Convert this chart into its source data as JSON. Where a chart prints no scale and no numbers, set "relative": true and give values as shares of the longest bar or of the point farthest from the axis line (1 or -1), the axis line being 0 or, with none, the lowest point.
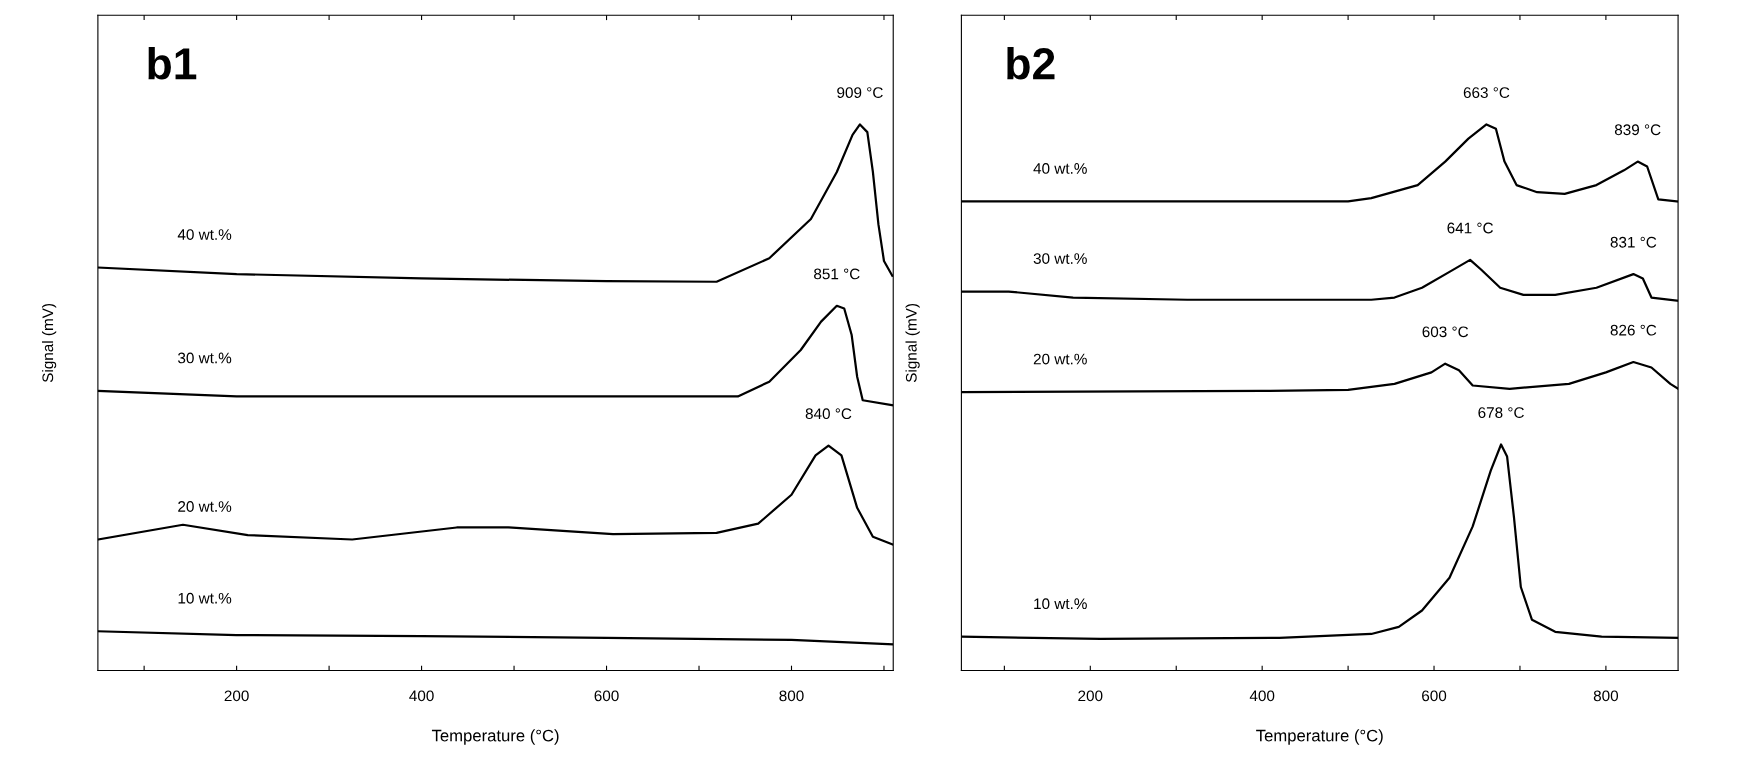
{
  "chart_data": [
    {
      "type": "line",
      "title": "b1",
      "xlabel": "Temperature (°C)",
      "ylabel": "Signal (mV)",
      "relative": true,
      "xlim": [
        50,
        910
      ],
      "xticks": [
        {
          "value": 100,
          "label": null
        },
        200,
        {
          "value": 300,
          "label": null
        },
        400,
        {
          "value": 500,
          "label": null
        },
        600,
        {
          "value": 700,
          "label": null
        },
        800,
        {
          "value": 900,
          "label": null
        }
      ],
      "tick_labels": "x",
      "grid": false,
      "legend": false,
      "marker": "none",
      "line_style": "solid",
      "series": [
        {
          "name": "40 wt.%",
          "color": "#000000",
          "x": [
            50,
            200,
            400,
            600,
            719,
            776,
            821,
            849,
            866,
            874,
            882,
            888,
            894,
            900,
            909
          ],
          "values": [
            0.738,
            0.726,
            0.718,
            0.713,
            0.712,
            0.755,
            0.827,
            0.913,
            0.981,
            1.0,
            0.986,
            0.913,
            0.817,
            0.75,
            0.723
          ]
        },
        {
          "name": "30 wt.%",
          "color": "#000000",
          "x": [
            50,
            200,
            400,
            600,
            742,
            776,
            810,
            832,
            849,
            857,
            865,
            871,
            877,
            909
          ],
          "values": [
            0.512,
            0.502,
            0.502,
            0.502,
            0.502,
            0.529,
            0.587,
            0.639,
            0.668,
            0.663,
            0.615,
            0.538,
            0.495,
            0.486
          ]
        },
        {
          "name": "20 wt.%",
          "color": "#000000",
          "x": [
            50,
            142,
            212,
            325,
            438,
            494,
            607,
            719,
            764,
            800,
            826,
            840,
            854,
            871,
            888,
            909
          ],
          "values": [
            0.24,
            0.267,
            0.248,
            0.24,
            0.262,
            0.262,
            0.25,
            0.252,
            0.269,
            0.322,
            0.394,
            0.412,
            0.394,
            0.298,
            0.245,
            0.231
          ]
        },
        {
          "name": "10 wt.%",
          "color": "#000000",
          "x": [
            50,
            200,
            400,
            600,
            800,
            909
          ],
          "values": [
            0.072,
            0.065,
            0.063,
            0.06,
            0.056,
            0.048
          ]
        }
      ],
      "annotations": [
        "909 °C",
        "851 °C",
        "840 °C"
      ]
    },
    {
      "type": "line",
      "title": "b2",
      "xlabel": "Temperature (°C)",
      "ylabel": "Signal (mV)",
      "relative": true,
      "xlim": [
        50,
        884
      ],
      "xticks": [
        {
          "value": 100,
          "label": null
        },
        200,
        {
          "value": 300,
          "label": null
        },
        400,
        {
          "value": 500,
          "label": null
        },
        600,
        {
          "value": 700,
          "label": null
        },
        800
      ],
      "tick_labels": "x",
      "grid": false,
      "legend": false,
      "marker": "none",
      "line_style": "solid",
      "series": [
        {
          "name": "40 wt.%",
          "color": "#000000",
          "x": [
            50,
            300,
            500,
            527,
            581,
            613,
            640,
            661,
            672,
            682,
            696,
            720,
            752,
            789,
            821,
            837,
            848,
            861,
            884
          ],
          "values": [
            0.859,
            0.859,
            0.859,
            0.865,
            0.889,
            0.932,
            0.974,
            1.0,
            0.992,
            0.932,
            0.889,
            0.876,
            0.873,
            0.889,
            0.916,
            0.932,
            0.923,
            0.863,
            0.859
          ]
        },
        {
          "name": "30 wt.%",
          "color": "#000000",
          "x": [
            50,
            105,
            180,
            313,
            527,
            554,
            586,
            618,
            642,
            655,
            677,
            704,
            741,
            789,
            832,
            843,
            853,
            884
          ],
          "values": [
            0.694,
            0.694,
            0.683,
            0.679,
            0.679,
            0.683,
            0.701,
            0.73,
            0.752,
            0.734,
            0.701,
            0.688,
            0.688,
            0.701,
            0.726,
            0.718,
            0.683,
            0.677
          ]
        },
        {
          "name": "20 wt.%",
          "color": "#000000",
          "x": [
            50,
            400,
            500,
            554,
            597,
            613,
            629,
            645,
            688,
            757,
            800,
            832,
            853,
            875,
            884
          ],
          "values": [
            0.51,
            0.512,
            0.514,
            0.525,
            0.546,
            0.562,
            0.55,
            0.522,
            0.516,
            0.525,
            0.546,
            0.565,
            0.555,
            0.525,
            0.516
          ]
        },
        {
          "name": "10 wt.%",
          "color": "#000000",
          "x": [
            50,
            212,
            420,
            527,
            559,
            586,
            618,
            645,
            666,
            678,
            685,
            693,
            701,
            714,
            741,
            795,
            884
          ],
          "values": [
            0.062,
            0.058,
            0.06,
            0.067,
            0.08,
            0.11,
            0.17,
            0.264,
            0.366,
            0.414,
            0.392,
            0.281,
            0.153,
            0.093,
            0.071,
            0.062,
            0.06
          ]
        }
      ],
      "annotations": [
        "663 °C",
        "839 °C",
        "641 °C",
        "831 °C",
        "603 °C",
        "826 °C",
        "678 °C"
      ]
    }
  ]
}
